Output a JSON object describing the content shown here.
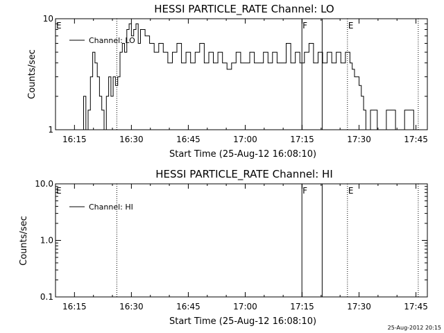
{
  "footer": {
    "timestamp": "25-Aug-2012 20:15"
  },
  "chart_data": [
    {
      "type": "line",
      "title": "HESSI PARTICLE_RATE Channel: LO",
      "xlabel": "Start Time (25-Aug-12 16:08:10)",
      "ylabel": "Counts/sec",
      "yscale": "log",
      "ylim": [
        1,
        10
      ],
      "xlim_minutes": [
        16.1667,
        17.8
      ],
      "x_ticks": [
        "16:15",
        "16:30",
        "16:45",
        "17:00",
        "17:15",
        "17:30",
        "17:45"
      ],
      "x_tick_hours": [
        16.25,
        16.5,
        16.75,
        17.0,
        17.25,
        17.5,
        17.75
      ],
      "y_ticks": [
        "1",
        "10"
      ],
      "y_tick_values": [
        1,
        10
      ],
      "legend": {
        "position": "top-left",
        "entries": [
          "Channel: LO"
        ]
      },
      "markers": [
        {
          "label": "E",
          "time": 16.1667,
          "style": "none"
        },
        {
          "label": "",
          "time": 16.436,
          "style": "dotted"
        },
        {
          "label": "F",
          "time": 17.249,
          "style": "solid"
        },
        {
          "label": "",
          "time": 17.338,
          "style": "solid"
        },
        {
          "label": "E",
          "time": 17.449,
          "style": "dotted"
        },
        {
          "label": "",
          "time": 17.76,
          "style": "dotted"
        }
      ],
      "series": [
        {
          "name": "Channel: LO",
          "x": [
            16.28,
            16.29,
            16.3,
            16.31,
            16.32,
            16.33,
            16.34,
            16.35,
            16.36,
            16.37,
            16.38,
            16.39,
            16.4,
            16.41,
            16.42,
            16.43,
            16.44,
            16.45,
            16.46,
            16.47,
            16.48,
            16.49,
            16.5,
            16.51,
            16.52,
            16.53,
            16.54,
            16.56,
            16.58,
            16.6,
            16.62,
            16.64,
            16.66,
            16.68,
            16.7,
            16.72,
            16.74,
            16.76,
            16.78,
            16.8,
            16.82,
            16.84,
            16.86,
            16.88,
            16.9,
            16.92,
            16.94,
            16.96,
            16.98,
            17.0,
            17.02,
            17.04,
            17.06,
            17.08,
            17.1,
            17.12,
            17.14,
            17.16,
            17.18,
            17.2,
            17.22,
            17.24,
            17.26,
            17.28,
            17.3,
            17.32,
            17.34,
            17.36,
            17.38,
            17.4,
            17.42,
            17.44,
            17.46,
            17.47,
            17.48,
            17.49,
            17.5,
            17.51,
            17.52,
            17.53,
            17.55,
            17.58,
            17.62,
            17.66,
            17.7,
            17.74
          ],
          "y": [
            1,
            2,
            1,
            1.5,
            3,
            5,
            4,
            3,
            2,
            1.5,
            1,
            2,
            3,
            2,
            3,
            2.5,
            3,
            5,
            6,
            5,
            8,
            9,
            7,
            8,
            9,
            6,
            8,
            7,
            6,
            5,
            6,
            5,
            4,
            5,
            6,
            4,
            5,
            4,
            5,
            6,
            4,
            5,
            4,
            5,
            4,
            3.5,
            4,
            5,
            4,
            4,
            5,
            4,
            4,
            5,
            4,
            5,
            4,
            4,
            6,
            4,
            5,
            4,
            5,
            6,
            4,
            5,
            4,
            5,
            4,
            5,
            4,
            5,
            4,
            3.5,
            3,
            3,
            2.5,
            2,
            1.5,
            1,
            1.5,
            1,
            1.5,
            1,
            1.5,
            1
          ]
        }
      ]
    },
    {
      "type": "line",
      "title": "HESSI PARTICLE_RATE Channel: HI",
      "xlabel": "Start Time (25-Aug-12 16:08:10)",
      "ylabel": "Counts/sec",
      "yscale": "log",
      "ylim": [
        0.1,
        10
      ],
      "x_ticks": [
        "16:15",
        "16:30",
        "16:45",
        "17:00",
        "17:15",
        "17:30",
        "17:45"
      ],
      "x_tick_hours": [
        16.25,
        16.5,
        16.75,
        17.0,
        17.25,
        17.5,
        17.75
      ],
      "y_ticks": [
        "10.0",
        "1.0",
        "0.1"
      ],
      "y_tick_values": [
        10,
        1,
        0.1
      ],
      "legend": {
        "position": "top-left",
        "entries": [
          "Channel: HI"
        ]
      },
      "markers": [
        {
          "label": "E",
          "time": 16.1667,
          "style": "none"
        },
        {
          "label": "",
          "time": 16.436,
          "style": "dotted"
        },
        {
          "label": "F",
          "time": 17.249,
          "style": "solid"
        },
        {
          "label": "",
          "time": 17.338,
          "style": "solid"
        },
        {
          "label": "E",
          "time": 17.449,
          "style": "dotted"
        },
        {
          "label": "",
          "time": 17.76,
          "style": "dotted"
        }
      ],
      "series": [
        {
          "name": "Channel: HI",
          "x": [],
          "y": []
        }
      ]
    }
  ]
}
